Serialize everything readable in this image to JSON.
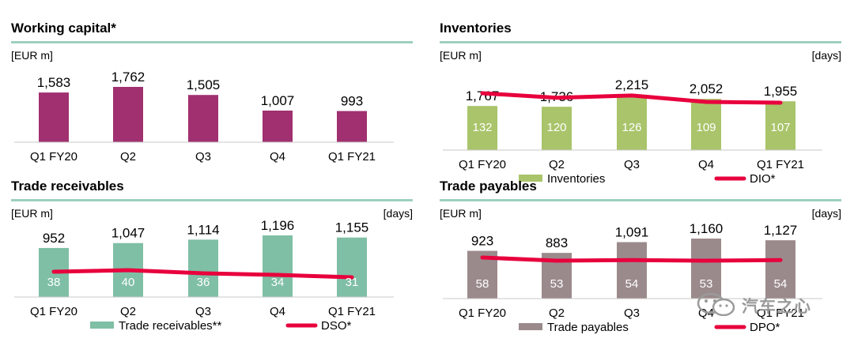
{
  "chart_data": [
    {
      "type": "bar",
      "title": "Working capital*",
      "ylabel": "[EUR m]",
      "categories": [
        "Q1 FY20",
        "Q2",
        "Q3",
        "Q4",
        "Q1 FY21"
      ],
      "series": [
        {
          "values": [
            1583,
            1762,
            1505,
            1007,
            993
          ]
        }
      ],
      "value_labels": [
        "1,583",
        "1,762",
        "1,505",
        "1,007",
        "993"
      ],
      "bar_color": "#a0306f",
      "grid": false
    },
    {
      "type": "bar",
      "title": "Inventories",
      "ylabel": "[EUR m]",
      "y2label": "[days]",
      "categories": [
        "Q1 FY20",
        "Q2",
        "Q3",
        "Q4",
        "Q1 FY21"
      ],
      "series": [
        {
          "name": "Inventories",
          "values": [
            1767,
            1736,
            2215,
            2052,
            1955
          ]
        },
        {
          "name": "DIO*",
          "type": "line",
          "axis": "secondary",
          "values": [
            132,
            120,
            126,
            109,
            107
          ]
        }
      ],
      "value_labels": [
        "1,767",
        "1,736",
        "2,215",
        "2,052",
        "1,955"
      ],
      "bar_color": "#a9c46a",
      "line_color": "#e8003d",
      "legend": "bottom",
      "grid": false
    },
    {
      "type": "bar",
      "title": "Trade receivables",
      "ylabel": "[EUR m]",
      "y2label": "[days]",
      "categories": [
        "Q1 FY20",
        "Q2",
        "Q3",
        "Q4",
        "Q1 FY21"
      ],
      "series": [
        {
          "name": "Trade receivables**",
          "values": [
            952,
            1047,
            1114,
            1196,
            1155
          ]
        },
        {
          "name": "DSO*",
          "type": "line",
          "axis": "secondary",
          "values": [
            38,
            40,
            36,
            34,
            31
          ]
        }
      ],
      "value_labels": [
        "952",
        "1,047",
        "1,114",
        "1,196",
        "1,155"
      ],
      "bar_color": "#7fbfa5",
      "line_color": "#e8003d",
      "legend": "bottom",
      "grid": false
    },
    {
      "type": "bar",
      "title": "Trade payables",
      "ylabel": "[EUR m]",
      "y2label": "[days]",
      "categories": [
        "Q1 FY20",
        "Q2",
        "Q3",
        "Q4",
        "Q1 FY21"
      ],
      "series": [
        {
          "name": "Trade payables",
          "values": [
            923,
            883,
            1091,
            1160,
            1127
          ]
        },
        {
          "name": "DPO*",
          "type": "line",
          "axis": "secondary",
          "values": [
            58,
            53,
            54,
            53,
            54
          ]
        }
      ],
      "value_labels": [
        "923",
        "883",
        "1,091",
        "1,160",
        "1,127"
      ],
      "bar_color": "#9b8a8c",
      "line_color": "#e8003d",
      "legend": "bottom",
      "grid": false
    }
  ],
  "watermark": {
    "text": "汽车之心",
    "icon": "wechat-icon"
  }
}
